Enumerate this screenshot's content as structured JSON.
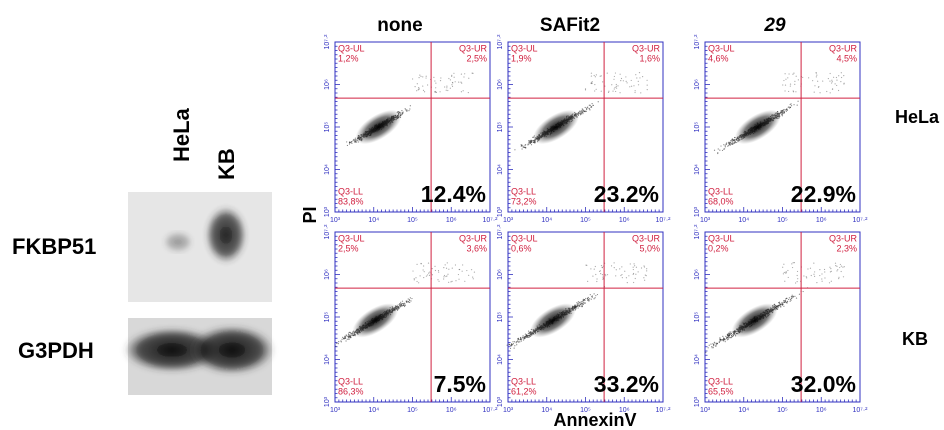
{
  "blot": {
    "lanes": [
      "HeLa",
      "KB"
    ],
    "proteins": [
      "FKBP51",
      "G3PDH"
    ]
  },
  "flow": {
    "columns": [
      "none",
      "SAFit2",
      "29"
    ],
    "rows": [
      "HeLa",
      "KB"
    ],
    "y_axis_label": "PI",
    "x_axis_label": "AnnexinV",
    "axis_ticks": [
      "10³",
      "10⁴",
      "10⁵",
      "10⁶",
      "10⁷·²"
    ],
    "gate_labels": {
      "ul": "Q3-UL",
      "ur": "Q3-UR",
      "ll": "Q3-LL"
    },
    "panels": [
      [
        {
          "ul": "1,2%",
          "ur": "2,5%",
          "ll": "83,8%",
          "result": "12.4%"
        },
        {
          "ul": "1,9%",
          "ur": "1,6%",
          "ll": "73,2%",
          "result": "23.2%"
        },
        {
          "ul": "4,6%",
          "ur": "4,5%",
          "ll": "68,0%",
          "result": "22.9%"
        }
      ],
      [
        {
          "ul": "2,5%",
          "ur": "3,6%",
          "ll": "86,3%",
          "result": "7.5%"
        },
        {
          "ul": "0,6%",
          "ur": "5,0%",
          "ll": "61,2%",
          "result": "33.2%"
        },
        {
          "ul": "0,2%",
          "ur": "2,3%",
          "ll": "65,5%",
          "result": "32.0%"
        }
      ]
    ]
  }
}
